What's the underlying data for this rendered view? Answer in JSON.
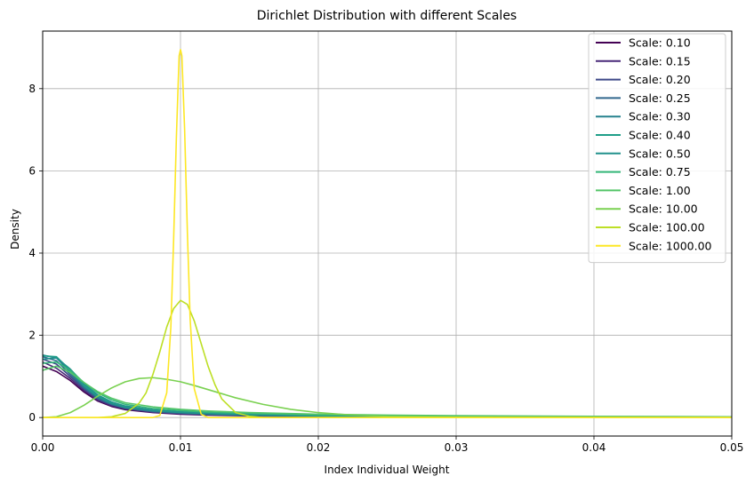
{
  "chart_data": {
    "type": "line",
    "title": "Dirichlet Distribution with different Scales",
    "xlabel": "Index Individual Weight",
    "ylabel": "Density",
    "xlim": [
      0,
      0.05
    ],
    "ylim": [
      -0.45,
      9.4
    ],
    "x_ticks": [
      0,
      0.01,
      0.02,
      0.03,
      0.04,
      0.05
    ],
    "x_tick_labels": [
      "0.00",
      "0.01",
      "0.02",
      "0.03",
      "0.04",
      "0.05"
    ],
    "y_ticks": [
      0,
      2,
      4,
      6,
      8
    ],
    "y_tick_labels": [
      "0",
      "2",
      "4",
      "6",
      "8"
    ],
    "grid": true,
    "legend_position": "top-right",
    "series": [
      {
        "name": "Scale: 0.10",
        "color": "#440154",
        "x": [
          0,
          0.001,
          0.002,
          0.003,
          0.004,
          0.005,
          0.006,
          0.008,
          0.01,
          0.012,
          0.015,
          0.02,
          0.025,
          0.03,
          0.04,
          0.05
        ],
        "y": [
          1.25,
          1.12,
          0.9,
          0.62,
          0.4,
          0.27,
          0.19,
          0.12,
          0.08,
          0.06,
          0.04,
          0.025,
          0.016,
          0.011,
          0.006,
          0.004
        ]
      },
      {
        "name": "Scale: 0.15",
        "color": "#482878",
        "x": [
          0,
          0.001,
          0.002,
          0.003,
          0.004,
          0.005,
          0.006,
          0.008,
          0.01,
          0.012,
          0.015,
          0.02,
          0.025,
          0.03,
          0.04,
          0.05
        ],
        "y": [
          1.35,
          1.2,
          0.95,
          0.66,
          0.42,
          0.29,
          0.21,
          0.13,
          0.09,
          0.07,
          0.045,
          0.028,
          0.018,
          0.012,
          0.007,
          0.005
        ]
      },
      {
        "name": "Scale: 0.20",
        "color": "#3e4989",
        "x": [
          0,
          0.001,
          0.002,
          0.003,
          0.004,
          0.005,
          0.006,
          0.008,
          0.01,
          0.012,
          0.015,
          0.02,
          0.025,
          0.03,
          0.04,
          0.05
        ],
        "y": [
          1.42,
          1.3,
          1.0,
          0.7,
          0.45,
          0.31,
          0.22,
          0.14,
          0.1,
          0.075,
          0.05,
          0.03,
          0.02,
          0.013,
          0.008,
          0.005
        ]
      },
      {
        "name": "Scale: 0.25",
        "color": "#31688e",
        "x": [
          0,
          0.001,
          0.002,
          0.003,
          0.004,
          0.005,
          0.006,
          0.008,
          0.01,
          0.012,
          0.015,
          0.02,
          0.025,
          0.03,
          0.04,
          0.05
        ],
        "y": [
          1.48,
          1.38,
          1.05,
          0.72,
          0.47,
          0.32,
          0.23,
          0.15,
          0.11,
          0.08,
          0.055,
          0.033,
          0.022,
          0.015,
          0.009,
          0.006
        ]
      },
      {
        "name": "Scale: 0.30",
        "color": "#26828e",
        "x": [
          0,
          0.001,
          0.002,
          0.003,
          0.004,
          0.005,
          0.006,
          0.008,
          0.01,
          0.012,
          0.015,
          0.02,
          0.025,
          0.03,
          0.04,
          0.05
        ],
        "y": [
          1.52,
          1.45,
          1.1,
          0.75,
          0.49,
          0.33,
          0.24,
          0.16,
          0.12,
          0.09,
          0.06,
          0.036,
          0.024,
          0.017,
          0.01,
          0.007
        ]
      },
      {
        "name": "Scale: 0.40",
        "color": "#1f9e89",
        "x": [
          0,
          0.001,
          0.002,
          0.003,
          0.004,
          0.005,
          0.006,
          0.008,
          0.01,
          0.012,
          0.015,
          0.02,
          0.025,
          0.03,
          0.04,
          0.05
        ],
        "y": [
          1.5,
          1.48,
          1.15,
          0.78,
          0.52,
          0.36,
          0.26,
          0.18,
          0.13,
          0.1,
          0.07,
          0.042,
          0.028,
          0.02,
          0.012,
          0.008
        ]
      },
      {
        "name": "Scale: 0.50",
        "color": "#21918c",
        "x": [
          0,
          0.001,
          0.002,
          0.003,
          0.004,
          0.005,
          0.006,
          0.008,
          0.01,
          0.012,
          0.015,
          0.02,
          0.025,
          0.03,
          0.04,
          0.05
        ],
        "y": [
          1.42,
          1.45,
          1.18,
          0.82,
          0.55,
          0.38,
          0.28,
          0.19,
          0.14,
          0.11,
          0.08,
          0.05,
          0.033,
          0.024,
          0.014,
          0.009
        ]
      },
      {
        "name": "Scale: 0.75",
        "color": "#35b779",
        "x": [
          0,
          0.001,
          0.002,
          0.003,
          0.004,
          0.005,
          0.006,
          0.008,
          0.01,
          0.012,
          0.015,
          0.02,
          0.025,
          0.03,
          0.04,
          0.05
        ],
        "y": [
          1.32,
          1.35,
          1.15,
          0.85,
          0.6,
          0.43,
          0.32,
          0.22,
          0.17,
          0.13,
          0.1,
          0.065,
          0.045,
          0.033,
          0.02,
          0.013
        ]
      },
      {
        "name": "Scale: 1.00",
        "color": "#54c568",
        "x": [
          0,
          0.001,
          0.002,
          0.003,
          0.004,
          0.005,
          0.006,
          0.008,
          0.01,
          0.012,
          0.015,
          0.02,
          0.025,
          0.03,
          0.04,
          0.05
        ],
        "y": [
          1.15,
          1.25,
          1.1,
          0.85,
          0.63,
          0.47,
          0.36,
          0.26,
          0.2,
          0.16,
          0.12,
          0.08,
          0.06,
          0.045,
          0.03,
          0.02
        ]
      },
      {
        "name": "Scale: 10.00",
        "color": "#7ad151",
        "x": [
          0,
          0.001,
          0.002,
          0.003,
          0.004,
          0.005,
          0.006,
          0.007,
          0.008,
          0.009,
          0.01,
          0.011,
          0.012,
          0.013,
          0.014,
          0.016,
          0.018,
          0.02,
          0.022,
          0.025,
          0.03,
          0.035,
          0.04,
          0.05
        ],
        "y": [
          0.0,
          0.02,
          0.12,
          0.3,
          0.52,
          0.72,
          0.87,
          0.95,
          0.97,
          0.93,
          0.87,
          0.78,
          0.68,
          0.58,
          0.48,
          0.32,
          0.2,
          0.12,
          0.07,
          0.03,
          0.01,
          0.003,
          0.001,
          0.0
        ]
      },
      {
        "name": "Scale: 100.00",
        "color": "#bddf26",
        "x": [
          0,
          0.004,
          0.005,
          0.006,
          0.007,
          0.0075,
          0.008,
          0.0085,
          0.009,
          0.0095,
          0.01,
          0.0105,
          0.011,
          0.0115,
          0.012,
          0.0125,
          0.013,
          0.014,
          0.015,
          0.016,
          0.05
        ],
        "y": [
          0.0,
          0.0,
          0.02,
          0.1,
          0.35,
          0.6,
          1.05,
          1.6,
          2.2,
          2.65,
          2.85,
          2.75,
          2.35,
          1.8,
          1.25,
          0.8,
          0.45,
          0.12,
          0.03,
          0.0,
          0.0
        ]
      },
      {
        "name": "Scale: 1000.00",
        "color": "#fde725",
        "x": [
          0,
          0.008,
          0.0085,
          0.009,
          0.0093,
          0.0095,
          0.0097,
          0.0099,
          0.01,
          0.0101,
          0.0103,
          0.0105,
          0.0107,
          0.011,
          0.0115,
          0.012,
          0.05
        ],
        "y": [
          0.0,
          0.0,
          0.05,
          0.6,
          2.2,
          4.3,
          6.8,
          8.8,
          8.95,
          8.8,
          7.0,
          4.5,
          2.4,
          0.7,
          0.08,
          0.0,
          0.0
        ]
      }
    ]
  }
}
